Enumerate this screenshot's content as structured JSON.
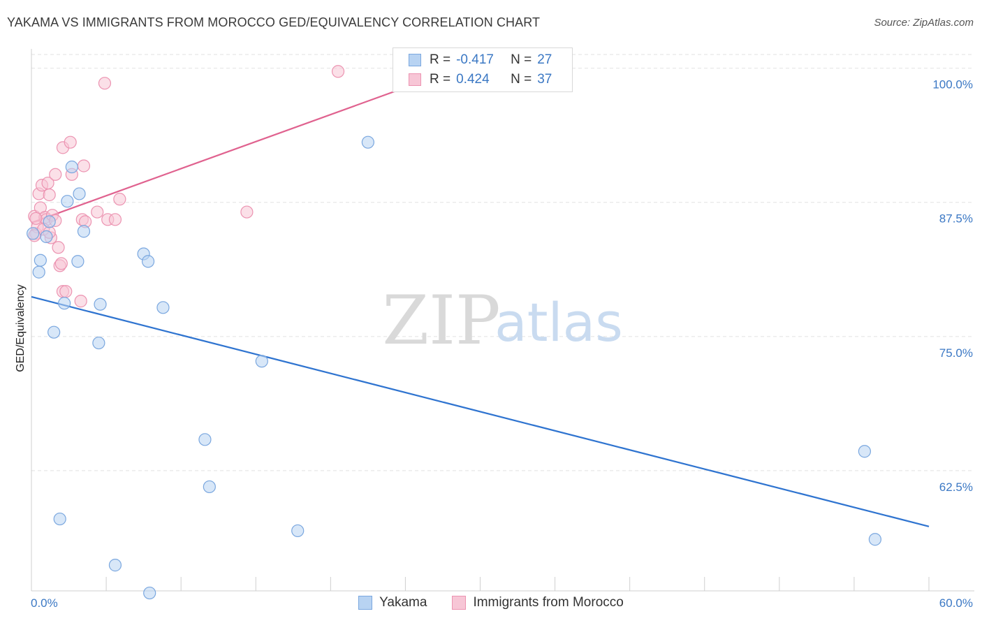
{
  "title": "YAKAMA VS IMMIGRANTS FROM MOROCCO GED/EQUIVALENCY CORRELATION CHART",
  "source": "Source: ZipAtlas.com",
  "watermark": {
    "zip": "ZIP",
    "atlas": "atlas"
  },
  "legend_top": {
    "rows": [
      {
        "r_label": "R =",
        "r_value": "-0.417",
        "n_label": "N =",
        "n_value": "27"
      },
      {
        "r_label": "R =",
        "r_value": "0.424",
        "n_label": "N =",
        "n_value": "37"
      }
    ]
  },
  "legend_bottom": {
    "series1": "Yakama",
    "series2": "Immigrants from Morocco"
  },
  "colors": {
    "series1_fill": "#b8d3f2",
    "series1_stroke": "#7aa7df",
    "series1_line": "#2f74d0",
    "series2_fill": "#f7c6d6",
    "series2_stroke": "#ec93b1",
    "series2_line": "#e0628f",
    "tick_text": "#3b78c4",
    "grid": "#e2e2e2"
  },
  "chart_data": {
    "type": "scatter",
    "title": "YAKAMA VS IMMIGRANTS FROM MOROCCO GED/EQUIVALENCY CORRELATION CHART",
    "xlabel": "",
    "ylabel": "GED/Equivalency",
    "xlim": [
      0,
      60
    ],
    "ylim": [
      51.3,
      101.8
    ],
    "x_tick_labels": [
      "0.0%",
      "60.0%"
    ],
    "y_ticks": [
      62.5,
      75.0,
      87.5,
      100.0
    ],
    "y_tick_labels": [
      "62.5%",
      "75.0%",
      "87.5%",
      "100.0%"
    ],
    "grid": true,
    "series": [
      {
        "name": "Yakama",
        "r": -0.417,
        "n": 27,
        "points": [
          [
            0.1,
            84.6
          ],
          [
            0.6,
            82.1
          ],
          [
            1.2,
            85.7
          ],
          [
            1.0,
            84.3
          ],
          [
            0.5,
            81.0
          ],
          [
            2.7,
            90.8
          ],
          [
            3.2,
            88.3
          ],
          [
            3.5,
            84.8
          ],
          [
            3.1,
            82.0
          ],
          [
            2.4,
            87.6
          ],
          [
            2.2,
            78.1
          ],
          [
            1.5,
            75.4
          ],
          [
            4.6,
            78.0
          ],
          [
            4.5,
            74.4
          ],
          [
            7.5,
            82.7
          ],
          [
            7.8,
            82.0
          ],
          [
            8.8,
            77.7
          ],
          [
            15.4,
            72.7
          ],
          [
            11.6,
            65.4
          ],
          [
            11.9,
            61.0
          ],
          [
            1.9,
            58.0
          ],
          [
            5.6,
            53.7
          ],
          [
            7.9,
            51.1
          ],
          [
            17.8,
            56.9
          ],
          [
            22.5,
            93.1
          ],
          [
            55.7,
            64.3
          ],
          [
            56.4,
            56.1
          ]
        ],
        "trend": {
          "x": [
            0,
            60
          ],
          "y": [
            78.7,
            57.3
          ]
        }
      },
      {
        "name": "Immigrants from Morocco",
        "r": 0.424,
        "n": 37,
        "points": [
          [
            0.2,
            86.2
          ],
          [
            0.3,
            84.6
          ],
          [
            0.4,
            85.2
          ],
          [
            0.6,
            87.0
          ],
          [
            0.5,
            88.3
          ],
          [
            0.7,
            89.1
          ],
          [
            0.9,
            86.1
          ],
          [
            1.0,
            85.9
          ],
          [
            1.1,
            89.3
          ],
          [
            1.2,
            88.2
          ],
          [
            1.3,
            84.2
          ],
          [
            1.4,
            86.3
          ],
          [
            1.6,
            85.8
          ],
          [
            1.6,
            90.1
          ],
          [
            1.8,
            83.3
          ],
          [
            1.9,
            81.6
          ],
          [
            2.0,
            81.8
          ],
          [
            2.1,
            79.2
          ],
          [
            2.3,
            79.2
          ],
          [
            2.1,
            92.6
          ],
          [
            2.6,
            93.1
          ],
          [
            2.7,
            90.1
          ],
          [
            3.3,
            78.3
          ],
          [
            3.4,
            85.9
          ],
          [
            3.5,
            90.9
          ],
          [
            3.6,
            85.7
          ],
          [
            4.4,
            86.6
          ],
          [
            5.1,
            85.9
          ],
          [
            5.6,
            85.9
          ],
          [
            5.9,
            87.8
          ],
          [
            0.3,
            86.0
          ],
          [
            0.8,
            85.0
          ],
          [
            1.2,
            84.7
          ],
          [
            4.9,
            98.6
          ],
          [
            14.4,
            86.6
          ],
          [
            20.5,
            99.7
          ],
          [
            0.2,
            84.4
          ]
        ],
        "trend": {
          "x": [
            0,
            25
          ],
          "y": [
            85.6,
            98.2
          ]
        }
      }
    ]
  }
}
